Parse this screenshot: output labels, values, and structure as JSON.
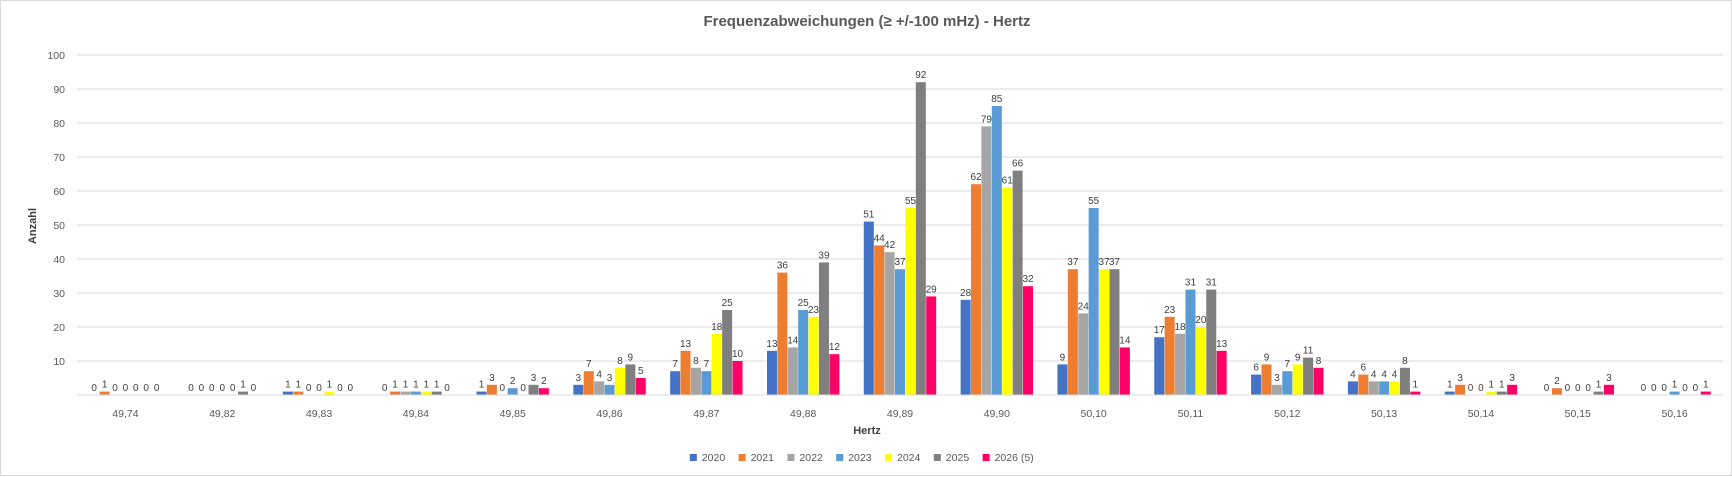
{
  "chart_data": {
    "type": "bar",
    "title": "Frequenzabweichungen (≥ +/-100 mHz) - Hertz",
    "xlabel": "Hertz",
    "ylabel": "Anzahl",
    "ylim": [
      0,
      100
    ],
    "yticks": [
      "10",
      "20",
      "30",
      "40",
      "50",
      "60",
      "70",
      "80",
      "90",
      "100"
    ],
    "grid": true,
    "legend_position": "bottom",
    "categories": [
      "49,74",
      "49,82",
      "49,83",
      "49,84",
      "49,85",
      "49,86",
      "49,87",
      "49,88",
      "49,89",
      "49,90",
      "50,10",
      "50,11",
      "50,12",
      "50,13",
      "50,14",
      "50,15",
      "50,16"
    ],
    "series": [
      {
        "name": "2020",
        "color": "#4472C4",
        "values": [
          0,
          0,
          1,
          0,
          1,
          3,
          7,
          13,
          51,
          28,
          9,
          17,
          6,
          4,
          1,
          0,
          0
        ]
      },
      {
        "name": "2021",
        "color": "#ED7D31",
        "values": [
          1,
          0,
          1,
          1,
          3,
          7,
          13,
          36,
          44,
          62,
          37,
          23,
          9,
          6,
          3,
          2,
          0
        ]
      },
      {
        "name": "2022",
        "color": "#A5A5A5",
        "values": [
          0,
          0,
          0,
          1,
          0,
          4,
          8,
          14,
          42,
          79,
          24,
          18,
          3,
          4,
          0,
          0,
          0
        ]
      },
      {
        "name": "2023",
        "color": "#5B9BD5",
        "values": [
          0,
          0,
          0,
          1,
          2,
          3,
          7,
          25,
          37,
          85,
          55,
          31,
          7,
          4,
          0,
          0,
          1
        ]
      },
      {
        "name": "2024",
        "color": "#FFFF00",
        "values": [
          0,
          0,
          1,
          1,
          0,
          8,
          18,
          23,
          55,
          61,
          37,
          20,
          9,
          4,
          1,
          0,
          0
        ]
      },
      {
        "name": "2025",
        "color": "#7F7F7F",
        "values": [
          0,
          1,
          0,
          1,
          3,
          9,
          25,
          39,
          92,
          66,
          37,
          31,
          11,
          8,
          1,
          1,
          0
        ]
      },
      {
        "name": "2026 (5)",
        "color": "#FF0066",
        "values": [
          0,
          0,
          0,
          0,
          2,
          5,
          10,
          12,
          29,
          32,
          14,
          13,
          8,
          1,
          3,
          3,
          1
        ]
      }
    ]
  }
}
